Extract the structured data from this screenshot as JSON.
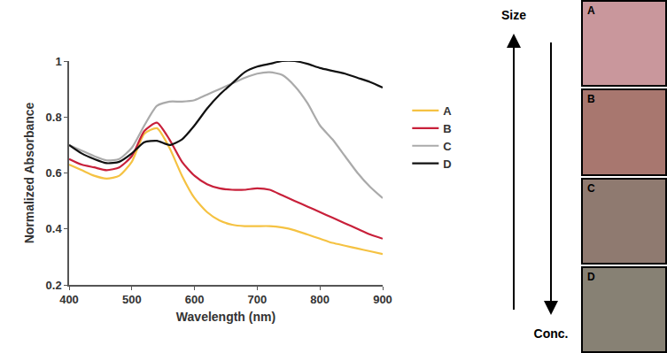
{
  "chart_data": {
    "type": "line",
    "x_title": "Wavelength (nm)",
    "y_title": "Normalized Absorbance",
    "x": [
      400,
      420,
      440,
      460,
      480,
      500,
      520,
      540,
      560,
      580,
      600,
      620,
      640,
      660,
      680,
      700,
      720,
      740,
      760,
      780,
      800,
      820,
      840,
      860,
      880,
      900
    ],
    "series": [
      {
        "name": "A",
        "color": "#f5c242",
        "values": [
          0.63,
          0.61,
          0.59,
          0.58,
          0.59,
          0.64,
          0.74,
          0.76,
          0.69,
          0.59,
          0.51,
          0.46,
          0.43,
          0.415,
          0.41,
          0.41,
          0.41,
          0.405,
          0.395,
          0.38,
          0.365,
          0.35,
          0.34,
          0.33,
          0.32,
          0.31
        ]
      },
      {
        "name": "B",
        "color": "#c8203a",
        "values": [
          0.65,
          0.63,
          0.62,
          0.61,
          0.62,
          0.66,
          0.75,
          0.78,
          0.72,
          0.64,
          0.59,
          0.56,
          0.545,
          0.54,
          0.54,
          0.545,
          0.54,
          0.52,
          0.5,
          0.48,
          0.46,
          0.44,
          0.42,
          0.4,
          0.38,
          0.365
        ]
      },
      {
        "name": "C",
        "color": "#aaaaaa",
        "values": [
          0.7,
          0.68,
          0.66,
          0.645,
          0.65,
          0.69,
          0.77,
          0.84,
          0.855,
          0.855,
          0.86,
          0.88,
          0.9,
          0.92,
          0.94,
          0.955,
          0.96,
          0.95,
          0.91,
          0.85,
          0.77,
          0.72,
          0.66,
          0.6,
          0.55,
          0.51
        ]
      },
      {
        "name": "D",
        "color": "#111111",
        "values": [
          0.7,
          0.67,
          0.65,
          0.635,
          0.64,
          0.67,
          0.71,
          0.715,
          0.7,
          0.72,
          0.77,
          0.83,
          0.88,
          0.92,
          0.96,
          0.98,
          0.99,
          1.0,
          1.0,
          0.99,
          0.975,
          0.965,
          0.955,
          0.94,
          0.925,
          0.905
        ]
      }
    ],
    "xlim": [
      400,
      900
    ],
    "xticks": [
      400,
      500,
      600,
      700,
      800,
      900
    ],
    "ylim": [
      0.2,
      1
    ],
    "yticks": [
      0.2,
      0.4,
      0.6,
      0.8,
      1
    ],
    "grid": false,
    "legend": "right"
  },
  "side_panel": {
    "arrows": [
      {
        "label": "Size",
        "direction": "up"
      },
      {
        "label": "Conc.",
        "direction": "down"
      }
    ],
    "swatches": [
      {
        "label": "A",
        "color": "#c9979c"
      },
      {
        "label": "B",
        "color": "#a8776f"
      },
      {
        "label": "C",
        "color": "#8f7a70"
      },
      {
        "label": "D",
        "color": "#878174"
      }
    ]
  }
}
